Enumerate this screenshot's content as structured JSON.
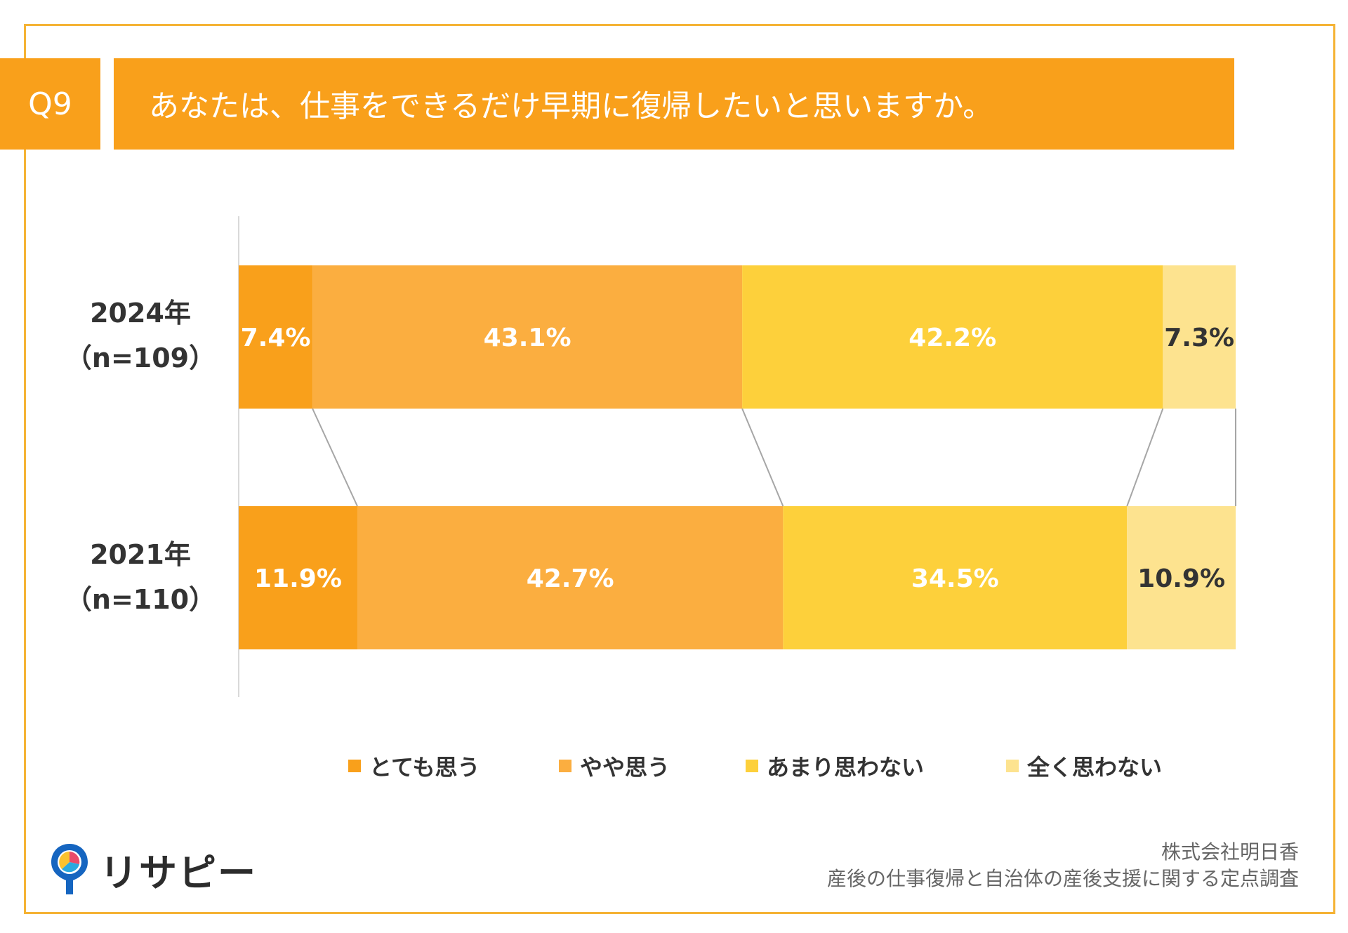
{
  "header": {
    "q_number": "Q9",
    "question": "あなたは、仕事をできるだけ早期に復帰したいと思いますか。"
  },
  "chart_data": {
    "type": "bar",
    "orientation": "horizontal-stacked-100",
    "categories": [
      "2024年（n=109）",
      "2021年（n=110）"
    ],
    "rows": [
      {
        "year": "2024年",
        "n": "（n=109）"
      },
      {
        "year": "2021年",
        "n": "（n=110）"
      }
    ],
    "series": [
      {
        "name": "とても思う",
        "color": "#F9A01B",
        "values": [
          7.4,
          11.9
        ],
        "labels": [
          "7.4%",
          "11.9%"
        ],
        "label_color": "#ffffff"
      },
      {
        "name": "やや思う",
        "color": "#FBAE40",
        "values": [
          43.1,
          42.7
        ],
        "labels": [
          "43.1%",
          "42.7%"
        ],
        "label_color": "#ffffff"
      },
      {
        "name": "あまり思わない",
        "color": "#FDD03B",
        "values": [
          42.2,
          34.5
        ],
        "labels": [
          "42.2%",
          "34.5%"
        ],
        "label_color": "#ffffff"
      },
      {
        "name": "全く思わない",
        "color": "#FDE38F",
        "values": [
          7.3,
          10.9
        ],
        "labels": [
          "7.3%",
          "10.9%"
        ],
        "label_color": "#333333"
      }
    ],
    "xlim": [
      0,
      100
    ],
    "legend_position": "bottom",
    "grid": false
  },
  "logo": {
    "text": "リサピー"
  },
  "source": {
    "line1": "株式会社明日香",
    "line2": "産後の仕事復帰と自治体の産後支援に関する定点調査"
  }
}
